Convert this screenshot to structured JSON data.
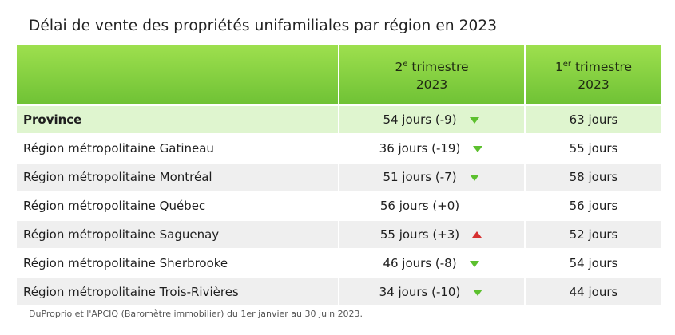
{
  "title": "Délai de vente des propriétés unifamiliales par région en 2023",
  "header": {
    "col2_line1_num": "2",
    "col2_line1_sup": "e",
    "col2_line1_rest": " trimestre",
    "col2_line2": "2023",
    "col3_line1_num": "1",
    "col3_line1_sup": "er",
    "col3_line1_rest": " trimestre",
    "col3_line2": "2023"
  },
  "colors": {
    "header": "#7fcd3e",
    "province_row": "#dff5cf",
    "down": "#5cc02e",
    "up": "#d63030"
  },
  "chart_data": {
    "type": "table",
    "columns": [
      "",
      "2e trimestre 2023",
      "1er trimestre 2023"
    ],
    "rows": [
      {
        "region": "Province",
        "q2_text": "54 jours (-9)",
        "q2": 54,
        "change": -9,
        "trend": "down",
        "q1_text": "63 jours",
        "q1": 63
      },
      {
        "region": "Région métropolitaine Gatineau",
        "q2_text": "36 jours (-19)",
        "q2": 36,
        "change": -19,
        "trend": "down",
        "q1_text": "55 jours",
        "q1": 55
      },
      {
        "region": "Région métropolitaine Montréal",
        "q2_text": "51 jours (-7)",
        "q2": 51,
        "change": -7,
        "trend": "down",
        "q1_text": "58 jours",
        "q1": 58
      },
      {
        "region": "Région métropolitaine Québec",
        "q2_text": "56 jours (+0)",
        "q2": 56,
        "change": 0,
        "trend": "none",
        "q1_text": "56 jours",
        "q1": 56
      },
      {
        "region": "Région métropolitaine Saguenay",
        "q2_text": "55 jours (+3)",
        "q2": 55,
        "change": 3,
        "trend": "up",
        "q1_text": "52 jours",
        "q1": 52
      },
      {
        "region": "Région métropolitaine Sherbrooke",
        "q2_text": "46 jours (-8)",
        "q2": 46,
        "change": -8,
        "trend": "down",
        "q1_text": "54 jours",
        "q1": 54
      },
      {
        "region": "Région métropolitaine Trois-Rivières",
        "q2_text": "34 jours (-10)",
        "q2": 34,
        "change": -10,
        "trend": "down",
        "q1_text": "44 jours",
        "q1": 44
      }
    ]
  },
  "footnote": "DuProprio et l'APCIQ (Baromètre immobilier) du 1er janvier au 30 juin 2023."
}
